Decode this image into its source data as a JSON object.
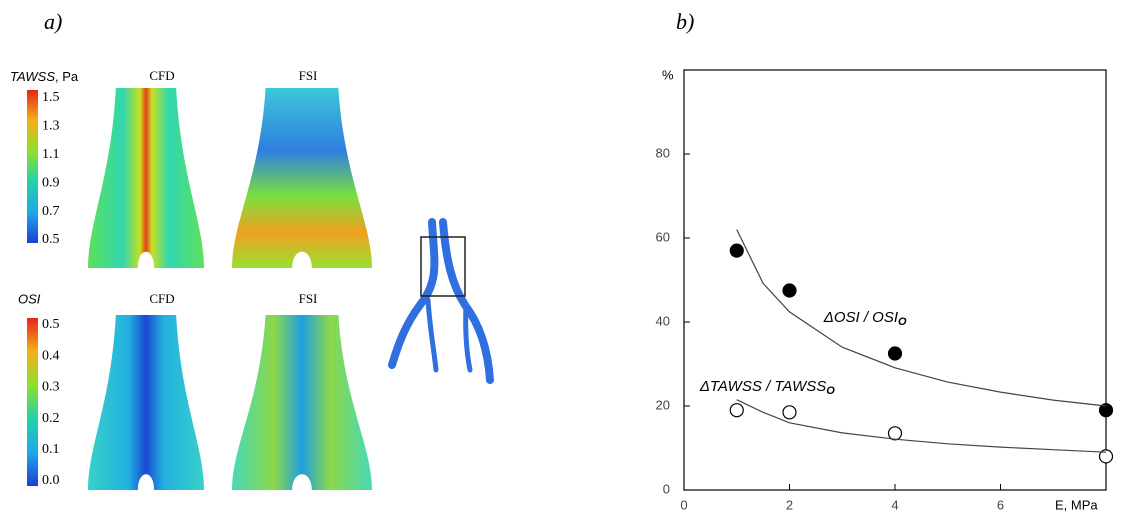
{
  "panel_a": {
    "label": "a)",
    "columns": [
      "CFD",
      "FSI"
    ],
    "tawss": {
      "title": "TAWSS",
      "unit": ", Pa",
      "ticks": [
        "1.5",
        "1.3",
        "1.1",
        "0.9",
        "0.7",
        "0.5"
      ]
    },
    "osi": {
      "title": "OSI",
      "ticks": [
        "0.5",
        "0.4",
        "0.3",
        "0.2",
        "0.1",
        "0.0"
      ]
    }
  },
  "chart_data": {
    "type": "scatter",
    "panel_label": "b)",
    "x_label": "E, MPa",
    "y_label": "%",
    "xlim": [
      0,
      8
    ],
    "ylim": [
      0,
      100
    ],
    "xticks": [
      0,
      2,
      4,
      6
    ],
    "yticks": [
      0,
      20,
      40,
      60,
      80
    ],
    "series": [
      {
        "type": "scatter",
        "marker": "filled",
        "color": "#000000",
        "x": [
          1,
          2,
          4,
          8
        ],
        "values": [
          57,
          47.5,
          32.5,
          19
        ]
      },
      {
        "type": "scatter",
        "marker": "open",
        "color": "#000000",
        "x": [
          1,
          2,
          4,
          8
        ],
        "values": [
          19,
          18.5,
          13.5,
          8
        ]
      },
      {
        "type": "line",
        "color": "#444444",
        "x": [
          1,
          1.5,
          2,
          3,
          4,
          5,
          6,
          7,
          8
        ],
        "values": [
          62,
          49.2,
          42.4,
          34,
          29.1,
          25.7,
          23.3,
          21.4,
          20
        ]
      },
      {
        "type": "line",
        "color": "#444444",
        "x": [
          1,
          1.5,
          2,
          3,
          4,
          5,
          6,
          7,
          8
        ],
        "values": [
          21.5,
          18.5,
          16,
          13.6,
          12.1,
          11,
          10.2,
          9.6,
          9
        ]
      }
    ],
    "annotations": [
      {
        "text": "ΔOSI / OSI",
        "sub": "O",
        "x": 2.65,
        "y": 41
      },
      {
        "text": "ΔTAWSS / TAWSS",
        "sub": "O",
        "x": 0.3,
        "y": 24.5
      }
    ]
  }
}
